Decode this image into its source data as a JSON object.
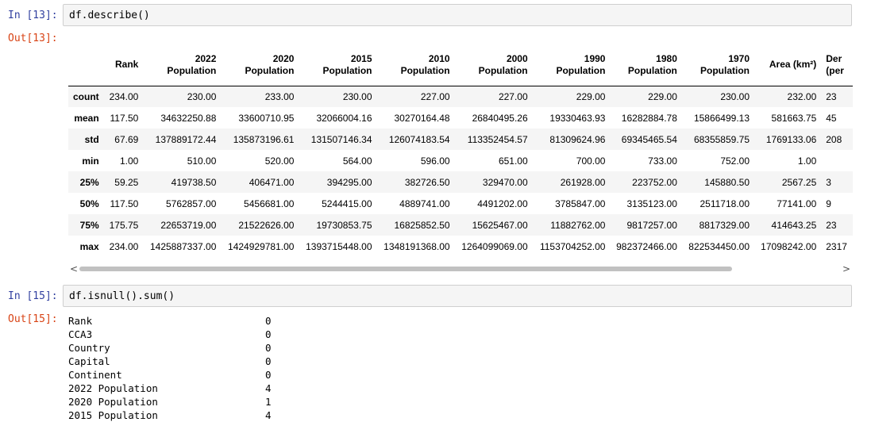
{
  "cells": {
    "describe": {
      "in_prompt": "In [13]:",
      "out_prompt": "Out[13]:",
      "code": "df.describe()"
    },
    "isnull": {
      "in_prompt": "In [15]:",
      "out_prompt": "Out[15]:",
      "code": "df.isnull().sum()"
    }
  },
  "describe_table": {
    "columns": [
      [
        "Rank"
      ],
      [
        "2022",
        "Population"
      ],
      [
        "2020",
        "Population"
      ],
      [
        "2015",
        "Population"
      ],
      [
        "2010",
        "Population"
      ],
      [
        "2000",
        "Population"
      ],
      [
        "1990",
        "Population"
      ],
      [
        "1980",
        "Population"
      ],
      [
        "1970",
        "Population"
      ],
      [
        "Area (km²)"
      ],
      [
        "Der",
        "(per"
      ]
    ],
    "rows": [
      {
        "label": "count",
        "values": [
          "234.00",
          "230.00",
          "233.00",
          "230.00",
          "227.00",
          "227.00",
          "229.00",
          "229.00",
          "230.00",
          "232.00",
          "23"
        ]
      },
      {
        "label": "mean",
        "values": [
          "117.50",
          "34632250.88",
          "33600710.95",
          "32066004.16",
          "30270164.48",
          "26840495.26",
          "19330463.93",
          "16282884.78",
          "15866499.13",
          "581663.75",
          "45"
        ]
      },
      {
        "label": "std",
        "values": [
          "67.69",
          "137889172.44",
          "135873196.61",
          "131507146.34",
          "126074183.54",
          "113352454.57",
          "81309624.96",
          "69345465.54",
          "68355859.75",
          "1769133.06",
          "208"
        ]
      },
      {
        "label": "min",
        "values": [
          "1.00",
          "510.00",
          "520.00",
          "564.00",
          "596.00",
          "651.00",
          "700.00",
          "733.00",
          "752.00",
          "1.00",
          ""
        ]
      },
      {
        "label": "25%",
        "values": [
          "59.25",
          "419738.50",
          "406471.00",
          "394295.00",
          "382726.50",
          "329470.00",
          "261928.00",
          "223752.00",
          "145880.50",
          "2567.25",
          "3"
        ]
      },
      {
        "label": "50%",
        "values": [
          "117.50",
          "5762857.00",
          "5456681.00",
          "5244415.00",
          "4889741.00",
          "4491202.00",
          "3785847.00",
          "3135123.00",
          "2511718.00",
          "77141.00",
          "9"
        ]
      },
      {
        "label": "75%",
        "values": [
          "175.75",
          "22653719.00",
          "21522626.00",
          "19730853.75",
          "16825852.50",
          "15625467.00",
          "11882762.00",
          "9817257.00",
          "8817329.00",
          "414643.25",
          "23"
        ]
      },
      {
        "label": "max",
        "values": [
          "234.00",
          "1425887337.00",
          "1424929781.00",
          "1393715448.00",
          "1348191368.00",
          "1264099069.00",
          "1153704252.00",
          "982372466.00",
          "822534450.00",
          "17098242.00",
          "2317"
        ]
      }
    ]
  },
  "scrollbar": {
    "left_arrow": "<",
    "right_arrow": ">"
  },
  "isnull_series": [
    {
      "label": "Rank",
      "value": "0"
    },
    {
      "label": "CCA3",
      "value": "0"
    },
    {
      "label": "Country",
      "value": "0"
    },
    {
      "label": "Capital",
      "value": "0"
    },
    {
      "label": "Continent",
      "value": "0"
    },
    {
      "label": "2022 Population",
      "value": "4"
    },
    {
      "label": "2020 Population",
      "value": "1"
    },
    {
      "label": "2015 Population",
      "value": "4"
    }
  ]
}
